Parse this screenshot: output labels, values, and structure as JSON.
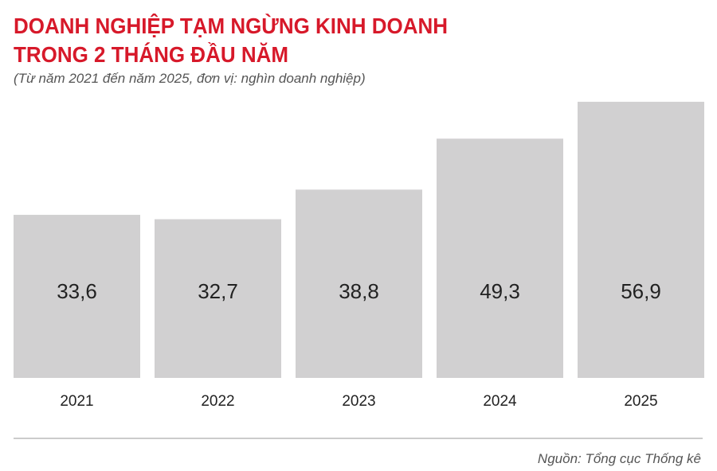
{
  "chart_data": {
    "type": "bar",
    "title": [
      "DOANH NGHIỆP TẠM NGỪNG KINH DOANH",
      "TRONG 2 THÁNG ĐẦU NĂM"
    ],
    "subtitle": "(Từ năm 2021 đến năm 2025, đơn vị: nghìn doanh nghiệp)",
    "categories": [
      "2021",
      "2022",
      "2023",
      "2024",
      "2025"
    ],
    "values": [
      33.6,
      32.7,
      38.8,
      49.3,
      56.9
    ],
    "value_labels": [
      "33,6",
      "32,7",
      "38,8",
      "49,3",
      "56,9"
    ],
    "color": "#d1d0d1",
    "source": "Nguồn: Tổng cục Thống kê"
  }
}
